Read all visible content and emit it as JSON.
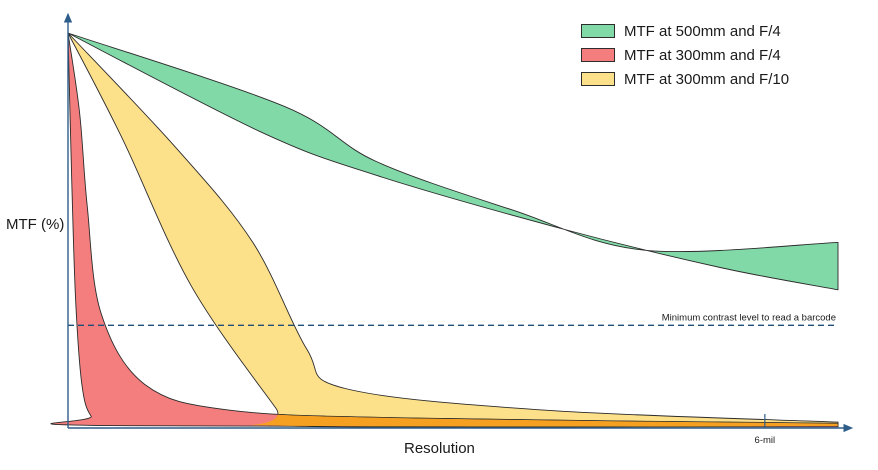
{
  "chart_data": {
    "type": "area",
    "title": "",
    "xlabel": "Resolution",
    "ylabel": "MTF (%)",
    "xlim": [
      0,
      100
    ],
    "ylim": [
      0,
      100
    ],
    "grid": false,
    "legend_position": "top-right",
    "series": [
      {
        "name": "MTF at 500mm and F/4",
        "color": "#82d9a8",
        "upper": [
          [
            0,
            100
          ],
          [
            28,
            81.5
          ],
          [
            40,
            67.5
          ],
          [
            58,
            55
          ],
          [
            75,
            45
          ],
          [
            100,
            47
          ]
        ],
        "lower": [
          [
            0,
            100
          ],
          [
            25,
            75
          ],
          [
            40,
            64
          ],
          [
            65,
            50
          ],
          [
            85,
            40.5
          ],
          [
            100,
            35
          ]
        ]
      },
      {
        "name": "MTF at 300mm and F/10",
        "color": "#fde08a",
        "upper": [
          [
            0,
            100
          ],
          [
            14,
            71
          ],
          [
            24,
            47
          ],
          [
            31,
            20
          ],
          [
            36,
            10
          ],
          [
            62,
            4.5
          ],
          [
            100,
            1.5
          ]
        ],
        "lower": [
          [
            0,
            100
          ],
          [
            7,
            73.5
          ],
          [
            16,
            36
          ],
          [
            27,
            5
          ],
          [
            29,
            0.5
          ],
          [
            100,
            0.5
          ]
        ]
      },
      {
        "name": "MTF at 300mm and F/4",
        "color": "#f47d7d",
        "upper": [
          [
            0,
            100
          ],
          [
            1.5,
            80
          ],
          [
            2.5,
            56
          ],
          [
            4.3,
            29
          ],
          [
            10,
            11
          ],
          [
            21,
            4.5
          ],
          [
            45,
            2.5
          ],
          [
            100,
            1.2
          ]
        ],
        "lower": [
          [
            0,
            100
          ],
          [
            0.5,
            62
          ],
          [
            1,
            32
          ],
          [
            1.8,
            11
          ],
          [
            3,
            3
          ],
          [
            5.5,
            0.6
          ],
          [
            100,
            0.3
          ]
        ]
      }
    ],
    "overlap_color": "#f5a020",
    "threshold": {
      "y": 26,
      "label": "Minimum contrast level to read a barcode",
      "color": "#1f4e79"
    },
    "marker": {
      "x": 90.5,
      "label": "6-mil"
    }
  }
}
